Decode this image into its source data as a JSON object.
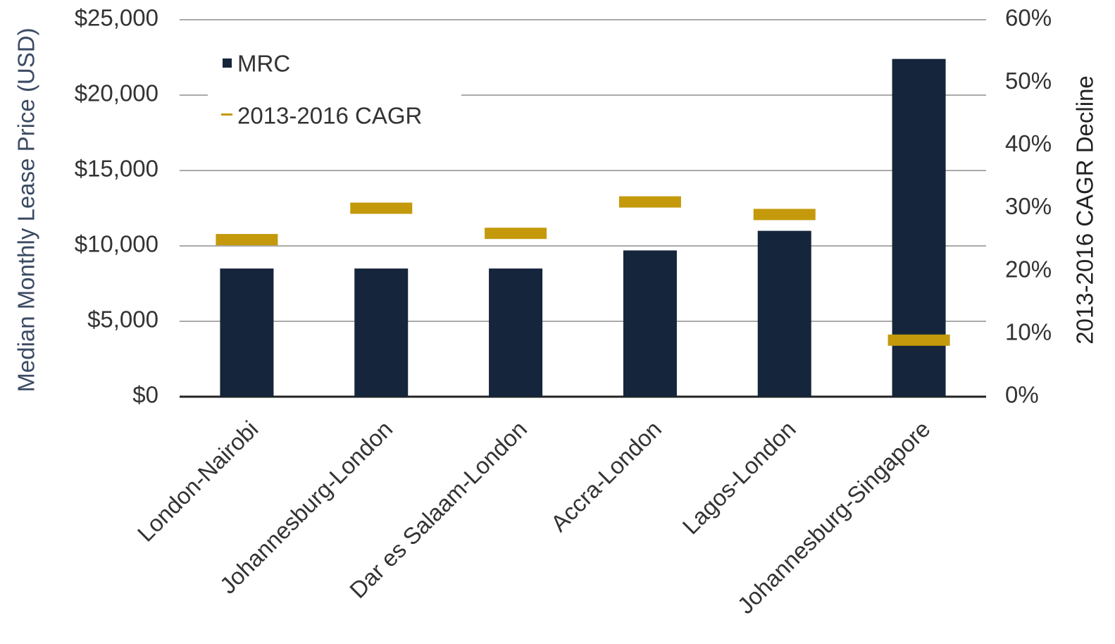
{
  "chart_data": {
    "type": "bar",
    "y_label": "Median Monthly Lease Price (USD)",
    "y2_label": "2013-2016 CAGR Decline",
    "categories": [
      "London-Nairobi",
      "Johannesburg-London",
      "Dar es Salaam-London",
      "Accra-London",
      "Lagos-London",
      "Johannesburg-Singapore"
    ],
    "series": [
      {
        "name": "MRC",
        "type": "bar",
        "color": "#15253b",
        "values": [
          8500,
          8500,
          8500,
          9700,
          11000,
          22400
        ]
      },
      {
        "name": "2013-2016 CAGR",
        "type": "dash",
        "axis": "y2",
        "color": "#c49a0c",
        "values": [
          25,
          30,
          26,
          31,
          29,
          9
        ]
      }
    ],
    "ylim": [
      0,
      25000
    ],
    "yticks": [
      {
        "value": 0,
        "label": "$0"
      },
      {
        "value": 5000,
        "label": "$5,000"
      },
      {
        "value": 10000,
        "label": "$10,000"
      },
      {
        "value": 15000,
        "label": "$15,000"
      },
      {
        "value": 20000,
        "label": "$20,000"
      },
      {
        "value": 25000,
        "label": "$25,000"
      }
    ],
    "y2lim": [
      0,
      60
    ],
    "y2ticks": [
      {
        "value": 0,
        "label": "0%"
      },
      {
        "value": 10,
        "label": "10%"
      },
      {
        "value": 20,
        "label": "20%"
      },
      {
        "value": 30,
        "label": "30%"
      },
      {
        "value": 40,
        "label": "40%"
      },
      {
        "value": 50,
        "label": "50%"
      },
      {
        "value": 60,
        "label": "60%"
      }
    ],
    "grid": true,
    "legend": "top-left"
  }
}
